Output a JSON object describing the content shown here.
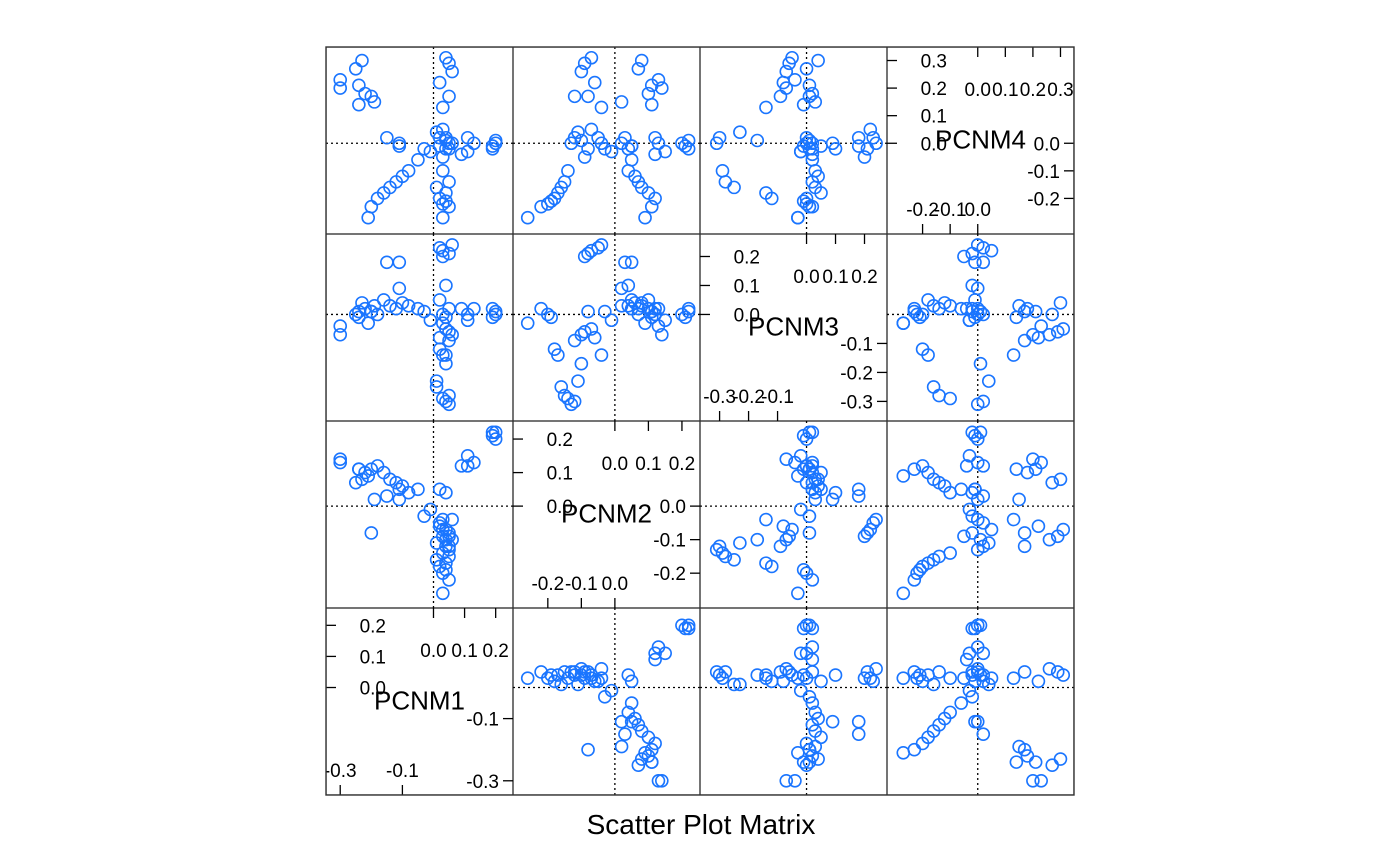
{
  "chart_data": {
    "type": "scatter",
    "title": "Scatter Plot Matrix",
    "variables": [
      "PCNM1",
      "PCNM2",
      "PCNM3",
      "PCNM4"
    ],
    "marker_color": "#1a75ff",
    "reference_line": {
      "x": 0,
      "y": 0,
      "style": "dotted"
    },
    "axes": {
      "PCNM1": {
        "range": [
          -0.32,
          0.23
        ],
        "ticks_low": [
          -0.3,
          -0.1
        ],
        "tick_labels_low": [
          "-0.3",
          "-0.1"
        ],
        "ticks_high": [
          0.0,
          0.1,
          0.2
        ],
        "tick_labels_high": [
          "0.0",
          "0.1",
          "0.2"
        ]
      },
      "PCNM2": {
        "range": [
          -0.28,
          0.23
        ],
        "ticks_low": [
          -0.2,
          -0.1,
          0.0
        ],
        "tick_labels_low": [
          "-0.2",
          "-0.1",
          "0.0"
        ],
        "ticks_high": [
          0.0,
          0.1,
          0.2
        ],
        "tick_labels_high": [
          "0.0",
          "0.1",
          "0.2"
        ]
      },
      "PCNM3": {
        "range": [
          -0.34,
          0.25
        ],
        "ticks_low": [
          -0.3,
          -0.2,
          -0.1
        ],
        "tick_labels_low": [
          "-0.3",
          "-0.2",
          "-0.1"
        ],
        "ticks_high": [
          0.0,
          0.1,
          0.2
        ],
        "tick_labels_high": [
          "0.0",
          "0.1",
          "0.2"
        ]
      },
      "PCNM4": {
        "range": [
          -0.3,
          0.32
        ],
        "ticks_low": [
          -0.2,
          -0.1,
          0.0
        ],
        "tick_labels_low": [
          "-0.2",
          "-0.1",
          "0.0"
        ],
        "ticks_high": [
          0.0,
          0.1,
          0.2,
          0.3
        ],
        "tick_labels_high": [
          "0.0",
          "0.1",
          "0.2",
          "0.3"
        ]
      }
    },
    "points": {
      "PCNM1": [
        0.2,
        0.19,
        0.2,
        0.19,
        0.11,
        0.13,
        0.11,
        0.09,
        0.02,
        0.06,
        0.03,
        0.05,
        0.03,
        0.04,
        0.01,
        0.04,
        0.05,
        0.03,
        0.05,
        0.01,
        0.04,
        0.02,
        0.04,
        0.03,
        0.05,
        0.03,
        0.04,
        0.05,
        0.06,
        0.02,
        0.05,
        0.03,
        -0.01,
        -0.03,
        -0.05,
        -0.08,
        -0.1,
        -0.12,
        -0.14,
        -0.16,
        -0.18,
        -0.2,
        -0.21,
        -0.23,
        -0.25,
        -0.3,
        -0.3,
        -0.24,
        -0.22,
        -0.24,
        -0.2,
        -0.19,
        -0.15,
        -0.11,
        -0.11,
        0.04,
        0.02
      ],
      "PCNM2": [
        0.22,
        0.21,
        0.2,
        0.22,
        0.15,
        0.13,
        0.12,
        0.12,
        -0.05,
        -0.04,
        -0.07,
        -0.08,
        -0.09,
        -0.1,
        -0.11,
        -0.12,
        -0.13,
        -0.14,
        -0.15,
        -0.16,
        -0.17,
        -0.18,
        -0.19,
        -0.2,
        -0.22,
        -0.26,
        -0.07,
        -0.09,
        -0.1,
        -0.06,
        -0.12,
        -0.04,
        -0.01,
        -0.03,
        0.05,
        0.04,
        0.06,
        0.07,
        0.08,
        0.1,
        0.12,
        0.11,
        0.09,
        0.08,
        0.07,
        0.13,
        0.14,
        0.11,
        0.1,
        0.11,
        -0.08,
        0.02,
        0.03,
        0.05,
        0.02,
        0.04,
        0.05
      ],
      "PCNM3": [
        0.01,
        -0.01,
        0.0,
        0.02,
        -0.02,
        0.02,
        0.0,
        0.02,
        0.23,
        0.24,
        0.22,
        0.21,
        0.2,
        -0.17,
        -0.23,
        -0.3,
        -0.31,
        -0.29,
        -0.28,
        -0.25,
        -0.14,
        -0.12,
        -0.01,
        0.0,
        0.02,
        -0.03,
        -0.05,
        -0.06,
        -0.07,
        -0.08,
        -0.09,
        -0.14,
        -0.02,
        0.01,
        0.02,
        0.03,
        0.04,
        0.02,
        0.03,
        0.05,
        0.0,
        0.01,
        -0.03,
        0.04,
        0.0,
        -0.04,
        -0.07,
        0.01,
        0.02,
        -0.01,
        0.01,
        0.03,
        0.18,
        0.18,
        0.09,
        0.1,
        0.05
      ],
      "PCNM4": [
        0.01,
        -0.01,
        0.0,
        -0.02,
        -0.03,
        0.0,
        0.02,
        -0.04,
        0.02,
        0.0,
        0.05,
        -0.02,
        -0.05,
        0.01,
        0.04,
        0.02,
        0.0,
        -0.1,
        -0.14,
        -0.16,
        -0.18,
        -0.2,
        -0.21,
        -0.22,
        -0.23,
        -0.27,
        0.31,
        0.29,
        0.26,
        0.22,
        0.17,
        0.13,
        -0.03,
        -0.02,
        -0.06,
        -0.1,
        -0.12,
        -0.14,
        -0.16,
        -0.18,
        -0.2,
        -0.23,
        -0.27,
        0.3,
        0.27,
        0.23,
        0.2,
        0.21,
        0.18,
        0.14,
        0.17,
        0.15,
        0.02,
        -0.01,
        0.0,
        -0.02,
        -0.01
      ]
    }
  }
}
